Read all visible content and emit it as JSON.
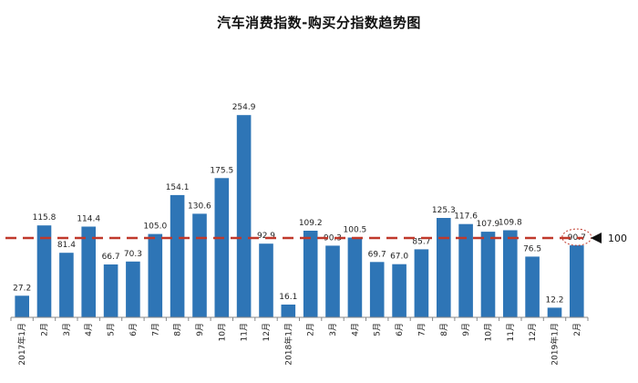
{
  "chart_data": {
    "type": "bar",
    "title": "汽车消费指数-购买分指数趋势图",
    "categories": [
      "2017年1月",
      "2月",
      "3月",
      "4月",
      "5月",
      "6月",
      "7月",
      "8月",
      "9月",
      "10月",
      "11月",
      "12月",
      "2018年1月",
      "2月",
      "3月",
      "4月",
      "5月",
      "6月",
      "7月",
      "8月",
      "9月",
      "10月",
      "11月",
      "12月",
      "2019年1月",
      "2月"
    ],
    "values": [
      27.2,
      115.8,
      81.4,
      114.4,
      66.7,
      70.3,
      105.0,
      154.1,
      130.6,
      175.5,
      254.9,
      92.9,
      16.1,
      109.2,
      90.3,
      100.5,
      69.7,
      67.0,
      85.7,
      125.3,
      117.6,
      107.9,
      109.8,
      76.5,
      12.2,
      90.7
    ],
    "value_labels": [
      "27.2",
      "115.8",
      "81.4",
      "114.4",
      "66.7",
      "70.3",
      "105.0",
      "154.1",
      "130.6",
      "175.5",
      "254.9",
      "92.9",
      "16.1",
      "109.2",
      "90.3",
      "100.5",
      "69.7",
      "67.0",
      "85.7",
      "125.3",
      "117.6",
      "107.9",
      "109.8",
      "76.5",
      "12.2",
      "90.7"
    ],
    "reference_line": {
      "value": 100,
      "label": "100",
      "color": "#c0392b"
    },
    "highlighted_index": 25,
    "ylim": [
      0,
      285
    ],
    "bar_color": "#2e75b6",
    "grid": false,
    "legend": "none"
  }
}
